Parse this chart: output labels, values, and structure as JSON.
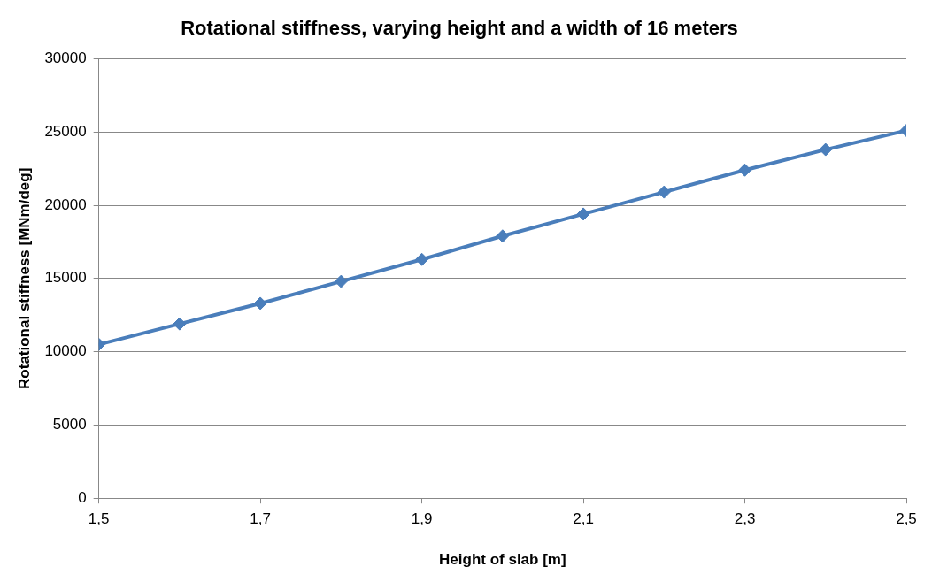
{
  "chart_data": {
    "type": "line",
    "title": "Rotational stiffness, varying height and a width of 16 meters",
    "xlabel": "Height of slab [m]",
    "ylabel": "Rotational stiffness [MNm/deg]",
    "x": [
      1.5,
      1.6,
      1.7,
      1.8,
      1.9,
      2.0,
      2.1,
      2.2,
      2.3,
      2.4,
      2.5
    ],
    "series": [
      {
        "color": "#4a7ebb",
        "values": [
          10500,
          11900,
          13300,
          14800,
          16300,
          17900,
          19400,
          20900,
          22400,
          23800,
          25100
        ]
      }
    ],
    "xlim": [
      1.5,
      2.5
    ],
    "xticks": [
      {
        "value": 1.5,
        "label": "1,5"
      },
      {
        "value": 1.7,
        "label": "1,7"
      },
      {
        "value": 1.9,
        "label": "1,9"
      },
      {
        "value": 2.1,
        "label": "2,1"
      },
      {
        "value": 2.3,
        "label": "2,3"
      },
      {
        "value": 2.5,
        "label": "2,5"
      }
    ],
    "ylim": [
      0,
      30000
    ],
    "yticks": [
      0,
      5000,
      10000,
      15000,
      20000,
      25000,
      30000
    ],
    "grid": "y",
    "marker": "diamond",
    "line_style": "solid",
    "legend": false
  }
}
